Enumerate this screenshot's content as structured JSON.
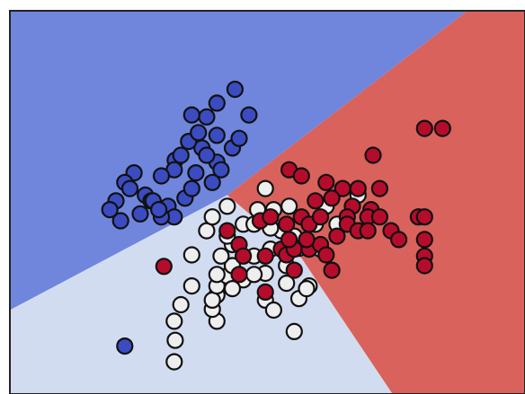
{
  "chart_data": {
    "type": "scatter",
    "title": "",
    "xlabel": "",
    "ylabel": "",
    "xlim": [
      0,
      100
    ],
    "ylim": [
      0,
      100
    ],
    "grid": false,
    "legend": "none",
    "colors": {
      "region_blue": "#6f86dc",
      "region_light": "#d2dcf1",
      "region_red": "#d9625c",
      "class_blue": "#3b4cc0",
      "class_white": "#eeeeee",
      "class_red": "#b50c2c",
      "marker_edge": "#111111",
      "frame": "#222222"
    },
    "regions": [
      {
        "name": "class-0",
        "color": "#6f86dc",
        "polygon": [
          [
            0,
            100
          ],
          [
            88.8,
            100
          ],
          [
            42.2,
            51.9
          ],
          [
            0,
            21.9
          ]
        ]
      },
      {
        "name": "class-1",
        "color": "#d2dcf1",
        "polygon": [
          [
            0,
            0
          ],
          [
            0,
            21.9
          ],
          [
            42.2,
            51.9
          ],
          [
            56.6,
            35.5
          ],
          [
            74.3,
            0
          ]
        ]
      },
      {
        "name": "class-2",
        "color": "#d9625c",
        "polygon": [
          [
            42.2,
            51.9
          ],
          [
            88.8,
            100
          ],
          [
            100,
            100
          ],
          [
            100,
            0
          ],
          [
            74.3,
            0
          ],
          [
            56.6,
            35.5
          ]
        ]
      }
    ],
    "series": [
      {
        "class": "blue",
        "color": "#3b4cc0",
        "points": [
          [
            43.7,
            79.5
          ],
          [
            40.2,
            75.9
          ],
          [
            38.2,
            72.3
          ],
          [
            35.3,
            72.8
          ],
          [
            46.4,
            72.8
          ],
          [
            40.2,
            67.5
          ],
          [
            37.3,
            64.2
          ],
          [
            34.7,
            65.9
          ],
          [
            32.1,
            61.0
          ],
          [
            31.9,
            58.5
          ],
          [
            29.4,
            56.9
          ],
          [
            24.1,
            57.7
          ],
          [
            22.3,
            55.2
          ],
          [
            23.3,
            53.6
          ],
          [
            26.3,
            51.9
          ],
          [
            20.6,
            50.4
          ],
          [
            19.4,
            48.1
          ],
          [
            27.4,
            50.4
          ],
          [
            30.7,
            49.0
          ],
          [
            34.0,
            51.1
          ],
          [
            31.9,
            46.2
          ],
          [
            35.3,
            53.6
          ],
          [
            39.3,
            55.2
          ],
          [
            40.2,
            60.5
          ],
          [
            38.2,
            62.3
          ],
          [
            43.2,
            64.2
          ],
          [
            44.5,
            66.7
          ],
          [
            36.6,
            68.2
          ],
          [
            29.4,
            46.2
          ],
          [
            21.5,
            45.2
          ],
          [
            25.3,
            47.0
          ],
          [
            27.8,
            50.4
          ],
          [
            28.9,
            48.1
          ],
          [
            33.2,
            62.3
          ],
          [
            41.0,
            58.5
          ],
          [
            36.1,
            57.7
          ],
          [
            22.3,
            12.5
          ]
        ]
      },
      {
        "class": "white",
        "color": "#eeeeee",
        "points": [
          [
            40.2,
            19.0
          ],
          [
            39.3,
            22.1
          ],
          [
            40.2,
            25.8
          ],
          [
            39.3,
            24.5
          ],
          [
            40.2,
            28.2
          ],
          [
            42.2,
            30.8
          ],
          [
            43.2,
            33.5
          ],
          [
            41.0,
            36.0
          ],
          [
            43.2,
            39.0
          ],
          [
            42.2,
            41.2
          ],
          [
            45.3,
            44.3
          ],
          [
            48.1,
            48.1
          ],
          [
            49.6,
            53.6
          ],
          [
            51.2,
            48.1
          ],
          [
            52.7,
            42.6
          ],
          [
            54.2,
            49.0
          ],
          [
            55.2,
            41.2
          ],
          [
            56.1,
            38.0
          ],
          [
            59.3,
            44.3
          ],
          [
            61.4,
            49.0
          ],
          [
            63.5,
            44.3
          ],
          [
            67.6,
            51.9
          ],
          [
            60.3,
            37.8
          ],
          [
            54.3,
            38.0
          ],
          [
            35.3,
            28.2
          ],
          [
            33.2,
            23.3
          ],
          [
            31.9,
            19.0
          ],
          [
            32.1,
            14.0
          ],
          [
            31.9,
            8.4
          ],
          [
            35.3,
            36.3
          ],
          [
            38.2,
            42.6
          ],
          [
            39.3,
            46.2
          ],
          [
            42.2,
            49.0
          ],
          [
            50.6,
            37.8
          ],
          [
            49.6,
            31.5
          ],
          [
            49.6,
            24.5
          ],
          [
            55.2,
            16.3
          ],
          [
            51.2,
            21.9
          ],
          [
            53.7,
            28.9
          ],
          [
            58.1,
            28.2
          ],
          [
            47.4,
            44.3
          ],
          [
            47.4,
            36.0
          ],
          [
            45.3,
            29.8
          ],
          [
            43.2,
            27.5
          ],
          [
            47.4,
            31.2
          ],
          [
            50.6,
            43.3
          ],
          [
            53.7,
            33.5
          ],
          [
            56.1,
            24.9
          ],
          [
            57.6,
            27.5
          ],
          [
            40.2,
            31.2
          ]
        ]
      },
      {
        "class": "red",
        "color": "#b50c2c",
        "points": [
          [
            80.5,
            69.3
          ],
          [
            84.0,
            69.3
          ],
          [
            70.5,
            62.3
          ],
          [
            54.2,
            58.5
          ],
          [
            56.6,
            56.9
          ],
          [
            61.4,
            55.2
          ],
          [
            64.6,
            53.6
          ],
          [
            67.6,
            53.6
          ],
          [
            71.8,
            53.6
          ],
          [
            59.3,
            50.4
          ],
          [
            62.5,
            51.1
          ],
          [
            66.5,
            49.0
          ],
          [
            70.1,
            48.1
          ],
          [
            48.6,
            45.2
          ],
          [
            50.6,
            46.2
          ],
          [
            53.7,
            44.3
          ],
          [
            56.6,
            46.2
          ],
          [
            58.1,
            44.3
          ],
          [
            60.3,
            46.2
          ],
          [
            65.5,
            46.2
          ],
          [
            69.5,
            46.2
          ],
          [
            71.8,
            46.2
          ],
          [
            74.0,
            42.6
          ],
          [
            75.5,
            40.3
          ],
          [
            79.3,
            46.2
          ],
          [
            80.5,
            46.2
          ],
          [
            80.5,
            40.3
          ],
          [
            80.5,
            36.0
          ],
          [
            80.5,
            33.5
          ],
          [
            42.2,
            42.6
          ],
          [
            44.5,
            39.0
          ],
          [
            45.3,
            36.0
          ],
          [
            44.5,
            31.2
          ],
          [
            49.6,
            36.0
          ],
          [
            52.7,
            37.8
          ],
          [
            53.7,
            36.3
          ],
          [
            55.2,
            37.8
          ],
          [
            58.1,
            37.8
          ],
          [
            60.3,
            39.0
          ],
          [
            61.4,
            36.3
          ],
          [
            62.5,
            32.3
          ],
          [
            55.2,
            32.3
          ],
          [
            29.9,
            33.3
          ],
          [
            49.6,
            26.6
          ],
          [
            57.6,
            40.3
          ],
          [
            63.5,
            41.2
          ],
          [
            65.5,
            44.3
          ],
          [
            67.6,
            42.6
          ],
          [
            69.5,
            42.6
          ],
          [
            54.2,
            40.3
          ]
        ]
      }
    ]
  }
}
